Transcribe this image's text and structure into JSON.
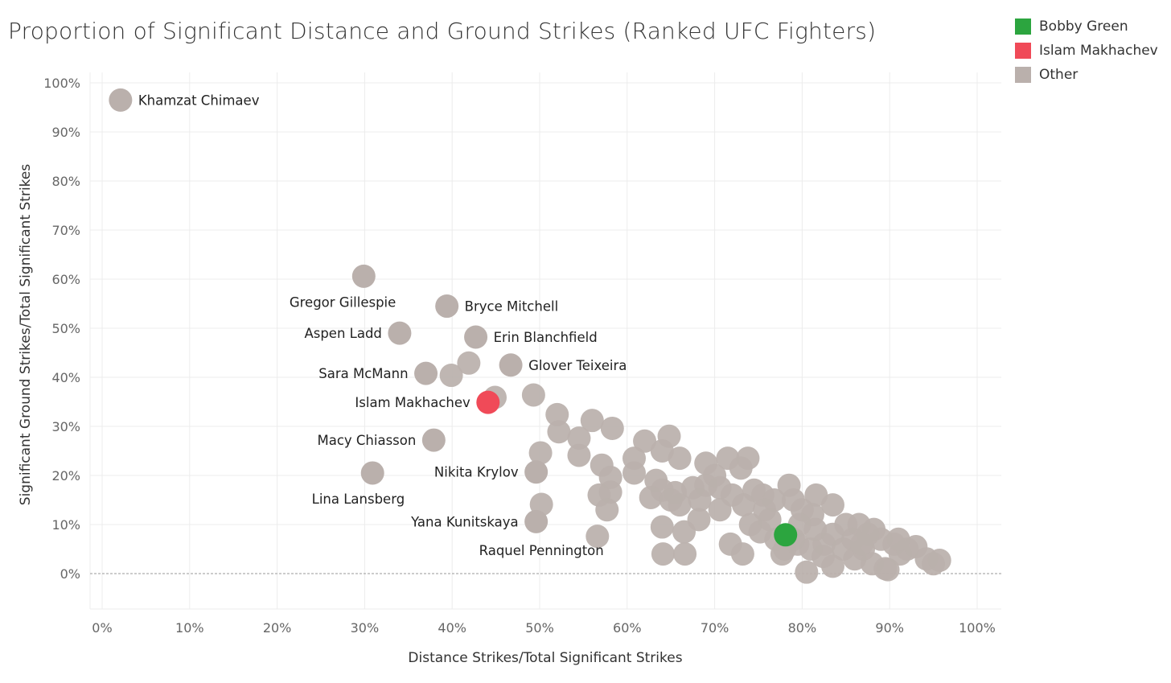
{
  "chart_data": {
    "type": "scatter",
    "title": "Proportion of Significant Distance and Ground Strikes (Ranked UFC Fighters)",
    "xlabel": "Distance Strikes/Total Significant Strikes",
    "ylabel": "Significant Ground Strikes/Total Significant Strikes",
    "xlim": [
      -0.015,
      1.03
    ],
    "ylim": [
      -0.07,
      1.02
    ],
    "x_ticks": [
      0,
      0.1,
      0.2,
      0.3,
      0.4,
      0.5,
      0.6,
      0.7,
      0.8,
      0.9,
      1.0
    ],
    "x_tick_labels": [
      "0%",
      "10%",
      "20%",
      "30%",
      "40%",
      "50%",
      "60%",
      "70%",
      "80%",
      "90%",
      "100%"
    ],
    "y_ticks": [
      0,
      0.1,
      0.2,
      0.3,
      0.4,
      0.5,
      0.6,
      0.7,
      0.8,
      0.9,
      1.0
    ],
    "y_tick_labels": [
      "0%",
      "10%",
      "20%",
      "30%",
      "40%",
      "50%",
      "60%",
      "70%",
      "80%",
      "90%",
      "100%"
    ],
    "grid": true,
    "legend_position": "top-right",
    "legend": [
      {
        "label": "Bobby Green",
        "color": "#2ca53f"
      },
      {
        "label": "Islam Makhachev",
        "color": "#f04a58"
      },
      {
        "label": "Other",
        "color": "#bab0ac"
      }
    ],
    "colors": {
      "Other": "#bab0ac",
      "Bobby Green": "#2ca53f",
      "Islam Makhachev": "#f04a58"
    },
    "labeled_points": [
      {
        "label": "Khamzat Chimaev",
        "x": 0.021,
        "y": 0.965,
        "group": "Other",
        "label_pos": "right"
      },
      {
        "label": "Gregor Gillespie",
        "x": 0.299,
        "y": 0.606,
        "group": "Other",
        "label_pos": "below-left"
      },
      {
        "label": "Bryce Mitchell",
        "x": 0.394,
        "y": 0.545,
        "group": "Other",
        "label_pos": "right"
      },
      {
        "label": "Aspen Ladd",
        "x": 0.34,
        "y": 0.49,
        "group": "Other",
        "label_pos": "left"
      },
      {
        "label": "Erin Blanchfield",
        "x": 0.427,
        "y": 0.482,
        "group": "Other",
        "label_pos": "right"
      },
      {
        "label": "Glover Teixeira",
        "x": 0.467,
        "y": 0.425,
        "group": "Other",
        "label_pos": "right"
      },
      {
        "label": "Sara McMann",
        "x": 0.37,
        "y": 0.408,
        "group": "Other",
        "label_pos": "left"
      },
      {
        "label": "Islam Makhachev",
        "x": 0.441,
        "y": 0.349,
        "group": "Islam Makhachev",
        "label_pos": "left"
      },
      {
        "label": "Macy Chiasson",
        "x": 0.379,
        "y": 0.272,
        "group": "Other",
        "label_pos": "left"
      },
      {
        "label": "Nikita Krylov",
        "x": 0.496,
        "y": 0.207,
        "group": "Other",
        "label_pos": "left"
      },
      {
        "label": "Lina Lansberg",
        "x": 0.309,
        "y": 0.205,
        "group": "Other",
        "label_pos": "below-left"
      },
      {
        "label": "Yana Kunitskaya",
        "x": 0.496,
        "y": 0.106,
        "group": "Other",
        "label_pos": "left"
      },
      {
        "label": "Raquel Pennington",
        "x": 0.502,
        "y": 0.025,
        "group": "Other",
        "label_pos": "text-only"
      },
      {
        "label": "",
        "x": 0.781,
        "y": 0.079,
        "group": "Bobby Green",
        "label_pos": "none"
      }
    ],
    "points": [
      [
        0.419,
        0.429
      ],
      [
        0.399,
        0.404
      ],
      [
        0.449,
        0.359
      ],
      [
        0.493,
        0.364
      ],
      [
        0.52,
        0.324
      ],
      [
        0.522,
        0.289
      ],
      [
        0.56,
        0.312
      ],
      [
        0.583,
        0.296
      ],
      [
        0.545,
        0.276
      ],
      [
        0.501,
        0.246
      ],
      [
        0.545,
        0.241
      ],
      [
        0.571,
        0.221
      ],
      [
        0.581,
        0.196
      ],
      [
        0.568,
        0.16
      ],
      [
        0.581,
        0.166
      ],
      [
        0.577,
        0.13
      ],
      [
        0.502,
        0.141
      ],
      [
        0.566,
        0.076
      ],
      [
        0.62,
        0.27
      ],
      [
        0.648,
        0.28
      ],
      [
        0.608,
        0.235
      ],
      [
        0.66,
        0.235
      ],
      [
        0.64,
        0.25
      ],
      [
        0.69,
        0.225
      ],
      [
        0.715,
        0.235
      ],
      [
        0.738,
        0.235
      ],
      [
        0.73,
        0.215
      ],
      [
        0.608,
        0.205
      ],
      [
        0.633,
        0.19
      ],
      [
        0.64,
        0.17
      ],
      [
        0.655,
        0.165
      ],
      [
        0.675,
        0.175
      ],
      [
        0.627,
        0.155
      ],
      [
        0.65,
        0.15
      ],
      [
        0.66,
        0.14
      ],
      [
        0.69,
        0.18
      ],
      [
        0.7,
        0.2
      ],
      [
        0.706,
        0.175
      ],
      [
        0.72,
        0.16
      ],
      [
        0.745,
        0.17
      ],
      [
        0.755,
        0.16
      ],
      [
        0.768,
        0.15
      ],
      [
        0.683,
        0.15
      ],
      [
        0.682,
        0.11
      ],
      [
        0.706,
        0.13
      ],
      [
        0.733,
        0.14
      ],
      [
        0.757,
        0.13
      ],
      [
        0.741,
        0.1
      ],
      [
        0.785,
        0.18
      ],
      [
        0.79,
        0.15
      ],
      [
        0.8,
        0.13
      ],
      [
        0.816,
        0.16
      ],
      [
        0.835,
        0.14
      ],
      [
        0.812,
        0.12
      ],
      [
        0.665,
        0.085
      ],
      [
        0.64,
        0.095
      ],
      [
        0.718,
        0.06
      ],
      [
        0.732,
        0.04
      ],
      [
        0.641,
        0.04
      ],
      [
        0.666,
        0.04
      ],
      [
        0.77,
        0.07
      ],
      [
        0.78,
        0.05
      ],
      [
        0.777,
        0.04
      ],
      [
        0.795,
        0.06
      ],
      [
        0.805,
        0.003
      ],
      [
        0.815,
        0.09
      ],
      [
        0.825,
        0.06
      ],
      [
        0.835,
        0.015
      ],
      [
        0.835,
        0.08
      ],
      [
        0.85,
        0.1
      ],
      [
        0.858,
        0.07
      ],
      [
        0.865,
        0.1
      ],
      [
        0.87,
        0.05
      ],
      [
        0.88,
        0.02
      ],
      [
        0.882,
        0.09
      ],
      [
        0.89,
        0.07
      ],
      [
        0.895,
        0.01
      ],
      [
        0.905,
        0.06
      ],
      [
        0.912,
        0.04
      ],
      [
        0.898,
        0.008
      ],
      [
        0.92,
        0.05
      ],
      [
        0.93,
        0.055
      ],
      [
        0.942,
        0.03
      ],
      [
        0.95,
        0.02
      ],
      [
        0.957,
        0.027
      ],
      [
        0.86,
        0.03
      ],
      [
        0.847,
        0.05
      ],
      [
        0.824,
        0.035
      ],
      [
        0.81,
        0.05
      ],
      [
        0.797,
        0.1
      ],
      [
        0.763,
        0.11
      ],
      [
        0.752,
        0.085
      ],
      [
        0.875,
        0.08
      ],
      [
        0.91,
        0.07
      ],
      [
        0.868,
        0.06
      ],
      [
        0.79,
        0.07
      ]
    ]
  }
}
